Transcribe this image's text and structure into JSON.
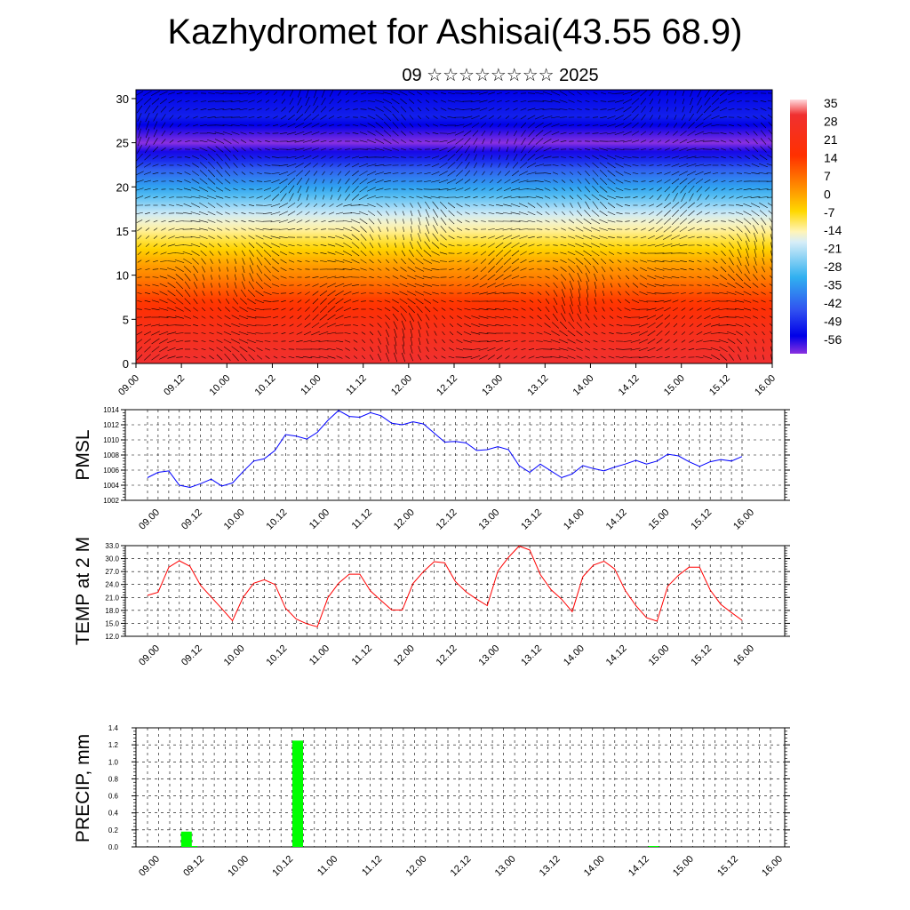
{
  "header": {
    "title": "Kazhydromet for Ashisai(43.55 68.9)",
    "subtitle": "09 ☆☆☆☆☆☆☆☆ 2025"
  },
  "colors": {
    "pmsl_line": "#0000ff",
    "temp_line": "#ff0000",
    "precip_bar": "#00ff00",
    "grid": "#000000"
  },
  "chart_data": [
    {
      "type": "heatmap",
      "name": "cross_section",
      "title": "",
      "xlabel": "",
      "ylabel": "",
      "x_tick_labels": [
        "09.00",
        "09.12",
        "10.00",
        "10.12",
        "11.00",
        "11.12",
        "12.00",
        "12.12",
        "13.00",
        "13.12",
        "14.00",
        "14.12",
        "15.00",
        "15.12",
        "16.00"
      ],
      "y_ticks": [
        0,
        5,
        10,
        15,
        20,
        25,
        30
      ],
      "ylim": [
        0,
        31
      ],
      "colorbar_labels": [
        "35",
        "28",
        "21",
        "14",
        "7",
        "0",
        "-7",
        "-14",
        "-21",
        "-28",
        "-35",
        "-42",
        "-49",
        "-56"
      ],
      "temperature_profile_by_height": [
        [
          0,
          30
        ],
        [
          4,
          24
        ],
        [
          8,
          15
        ],
        [
          11,
          8
        ],
        [
          14,
          -3
        ],
        [
          16,
          -10
        ],
        [
          19,
          -25
        ],
        [
          22,
          -40
        ],
        [
          25,
          -60
        ],
        [
          28,
          -48
        ],
        [
          31,
          -52
        ]
      ],
      "overlay": "wind vectors"
    },
    {
      "type": "line",
      "name": "pmsl",
      "ylabel": "PMSL",
      "ylim": [
        1002,
        1014
      ],
      "y_tick_labels": [
        "1002",
        "1004",
        "1006",
        "1008",
        "1010",
        "1012",
        "1014"
      ],
      "x_tick_labels": [
        "09.00",
        "09.12",
        "10.00",
        "10.12",
        "11.00",
        "11.12",
        "12.00",
        "12.12",
        "13.00",
        "13.12",
        "14.00",
        "14.12",
        "15.00",
        "15.12",
        "16.00"
      ],
      "series": [
        {
          "values": [
            1005.0,
            1005.7,
            1005.9,
            1004.0,
            1003.7,
            1004.2,
            1004.8,
            1003.9,
            1004.3,
            1005.8,
            1007.2,
            1007.5,
            1008.6,
            1010.7,
            1010.5,
            1010.1,
            1011.0,
            1012.6,
            1013.9,
            1013.1,
            1013.0,
            1013.6,
            1013.2,
            1012.2,
            1012.0,
            1012.4,
            1012.1,
            1010.9,
            1009.7,
            1009.8,
            1009.6,
            1008.6,
            1008.7,
            1009.1,
            1008.7,
            1006.6,
            1005.7,
            1006.8,
            1005.9,
            1005.0,
            1005.5,
            1006.6,
            1006.2,
            1005.9,
            1006.4,
            1006.8,
            1007.3,
            1006.8,
            1007.2,
            1008.1,
            1007.9,
            1007.1,
            1006.5,
            1007.1,
            1007.4,
            1007.2,
            1007.8
          ]
        }
      ]
    },
    {
      "type": "line",
      "name": "temp",
      "ylabel": "TEMP at 2 M",
      "ylim": [
        12.0,
        33.0
      ],
      "y_tick_labels": [
        "12.0",
        "15.0",
        "18.0",
        "21.0",
        "24.0",
        "27.0",
        "30.0",
        "33.0"
      ],
      "x_tick_labels": [
        "09.00",
        "09.12",
        "10.00",
        "10.12",
        "11.00",
        "11.12",
        "12.00",
        "12.12",
        "13.00",
        "13.12",
        "14.00",
        "14.12",
        "15.00",
        "15.12",
        "16.00"
      ],
      "series": [
        {
          "values": [
            21.5,
            22.2,
            28.0,
            29.5,
            28.2,
            23.8,
            21.1,
            18.4,
            15.6,
            21.0,
            24.3,
            25.1,
            24.0,
            18.5,
            16.0,
            14.9,
            14.2,
            21.0,
            24.3,
            26.4,
            26.4,
            22.5,
            20.3,
            18.1,
            18.1,
            24.2,
            27.0,
            29.3,
            29.0,
            24.7,
            22.3,
            20.6,
            19.1,
            27.1,
            30.3,
            32.9,
            32.0,
            26.3,
            22.8,
            20.6,
            17.7,
            25.8,
            28.5,
            29.4,
            27.6,
            22.6,
            19.1,
            16.3,
            15.5,
            23.6,
            26.1,
            28.0,
            28.0,
            22.7,
            19.4,
            17.5,
            15.7
          ]
        }
      ]
    },
    {
      "type": "bar",
      "name": "precip",
      "ylabel": "PRECIP, mm",
      "ylim": [
        0.0,
        1.4
      ],
      "y_tick_labels": [
        "0.0",
        "0.2",
        "0.4",
        "0.6",
        "0.8",
        "1.0",
        "1.2",
        "1.4"
      ],
      "x_tick_labels": [
        "09.00",
        "09.12",
        "10.00",
        "10.12",
        "11.00",
        "11.12",
        "12.00",
        "12.12",
        "13.00",
        "13.12",
        "14.00",
        "14.12",
        "15.00",
        "15.12",
        "16.00"
      ],
      "bars": [
        {
          "t": 10.5,
          "value": 0.18
        },
        {
          "t": 12.0,
          "value": 0.01
        },
        {
          "t": 40.5,
          "value": 1.25
        },
        {
          "t": 136.5,
          "value": 0.01
        }
      ]
    }
  ]
}
